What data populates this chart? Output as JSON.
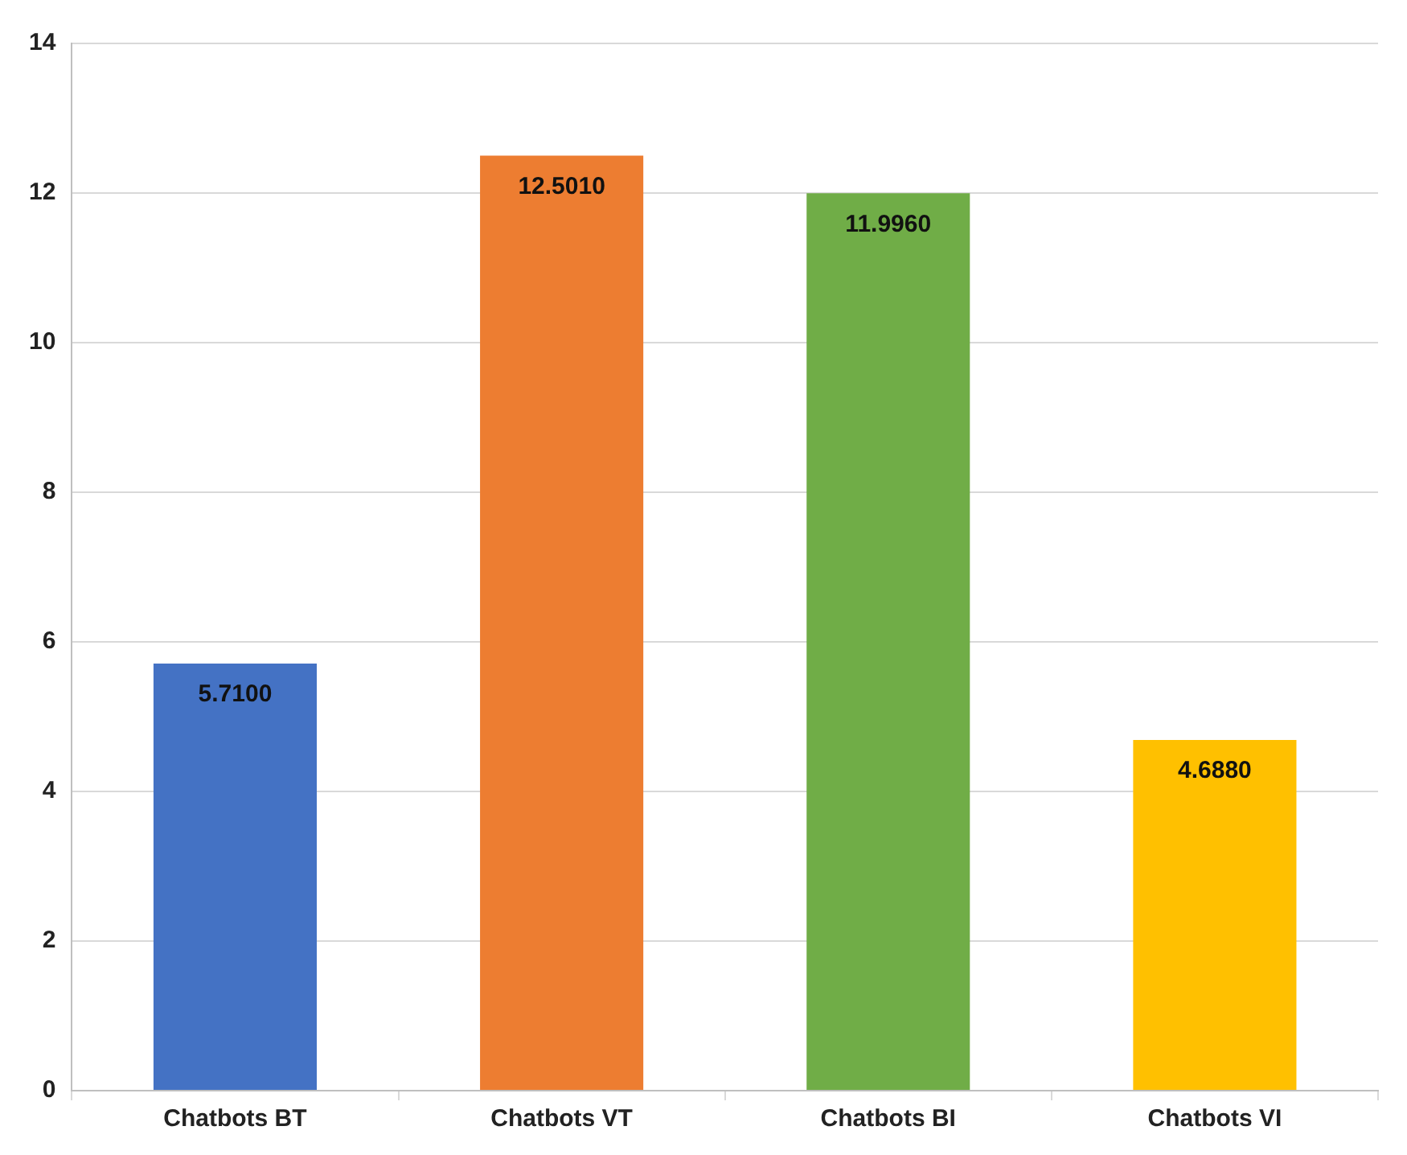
{
  "chart_data": {
    "type": "bar",
    "categories": [
      "Chatbots BT",
      "Chatbots VT",
      "Chatbots BI",
      "Chatbots VI"
    ],
    "values": [
      5.71,
      12.501,
      11.996,
      4.688
    ],
    "colors": [
      "#4472c4",
      "#ed7d31",
      "#70ad47",
      "#ffc000"
    ],
    "value_labels": [
      "5.7100",
      "12.5010",
      "11.9960",
      "4.6880"
    ],
    "ylim": [
      0,
      14
    ],
    "yticks": [
      0,
      2,
      4,
      6,
      8,
      10,
      12,
      14
    ],
    "grid": "y"
  }
}
